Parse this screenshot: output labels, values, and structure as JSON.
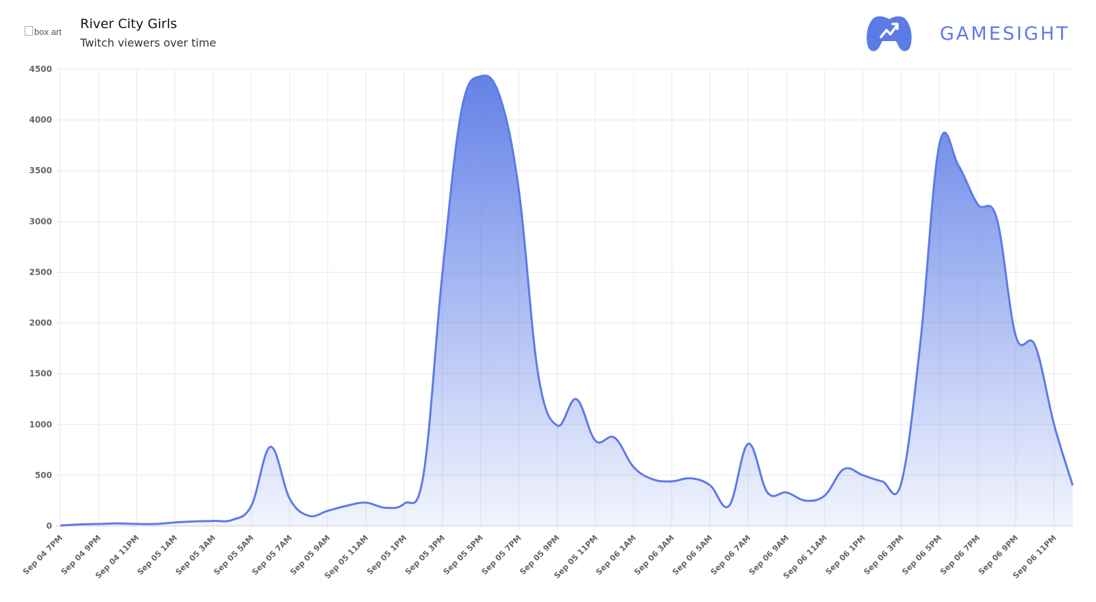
{
  "header": {
    "boxart_alt": "box art",
    "title": "River City Girls",
    "subtitle": "Twitch viewers over time"
  },
  "brand": {
    "name": "GAMESIGHT",
    "color": "#5b7be6",
    "icon": "gamepad-trend-icon"
  },
  "chart_data": {
    "type": "area",
    "title": "River City Girls",
    "subtitle": "Twitch viewers over time",
    "xlabel": "",
    "ylabel": "",
    "ylim": [
      0,
      4500
    ],
    "yticks": [
      0,
      500,
      1000,
      1500,
      2000,
      2500,
      3000,
      3500,
      4000,
      4500
    ],
    "grid": true,
    "legend": "none",
    "line_color": "#5b7be6",
    "xtick_labels": [
      "Sep 04 7PM",
      "Sep 04 9PM",
      "Sep 04 11PM",
      "Sep 05 1AM",
      "Sep 05 3AM",
      "Sep 05 5AM",
      "Sep 05 7AM",
      "Sep 05 9AM",
      "Sep 05 11AM",
      "Sep 05 1PM",
      "Sep 05 3PM",
      "Sep 05 5PM",
      "Sep 05 7PM",
      "Sep 05 9PM",
      "Sep 05 11PM",
      "Sep 06 1AM",
      "Sep 06 3AM",
      "Sep 06 5AM",
      "Sep 06 7AM",
      "Sep 06 9AM",
      "Sep 06 11AM",
      "Sep 06 1PM",
      "Sep 06 3PM",
      "Sep 06 5PM",
      "Sep 06 7PM",
      "Sep 06 9PM",
      "Sep 06 11PM"
    ],
    "x": [
      "Sep 04 7PM",
      "Sep 04 8PM",
      "Sep 04 9PM",
      "Sep 04 10PM",
      "Sep 04 11PM",
      "Sep 05 12AM",
      "Sep 05 1AM",
      "Sep 05 2AM",
      "Sep 05 3AM",
      "Sep 05 4AM",
      "Sep 05 5AM",
      "Sep 05 6AM",
      "Sep 05 7AM",
      "Sep 05 8AM",
      "Sep 05 9AM",
      "Sep 05 10AM",
      "Sep 05 11AM",
      "Sep 05 12PM",
      "Sep 05 1PM",
      "Sep 05 2PM",
      "Sep 05 3PM",
      "Sep 05 4PM",
      "Sep 05 5PM",
      "Sep 05 6PM",
      "Sep 05 7PM",
      "Sep 05 8PM",
      "Sep 05 9PM",
      "Sep 05 10PM",
      "Sep 05 11PM",
      "Sep 06 12AM",
      "Sep 06 1AM",
      "Sep 06 2AM",
      "Sep 06 3AM",
      "Sep 06 4AM",
      "Sep 06 5AM",
      "Sep 06 6AM",
      "Sep 06 7AM",
      "Sep 06 8AM",
      "Sep 06 9AM",
      "Sep 06 10AM",
      "Sep 06 11AM",
      "Sep 06 12PM",
      "Sep 06 1PM",
      "Sep 06 2PM",
      "Sep 06 3PM",
      "Sep 06 4PM",
      "Sep 06 5PM",
      "Sep 06 6PM",
      "Sep 06 7PM",
      "Sep 06 8PM",
      "Sep 06 9PM",
      "Sep 06 10PM",
      "Sep 06 11PM",
      "Sep 07 12AM"
    ],
    "series": [
      {
        "values": [
          5,
          15,
          20,
          25,
          20,
          20,
          35,
          45,
          50,
          60,
          200,
          780,
          270,
          100,
          150,
          200,
          230,
          180,
          220,
          500,
          2500,
          4100,
          4430,
          4230,
          3300,
          1500,
          990,
          1250,
          840,
          870,
          580,
          460,
          440,
          470,
          400,
          200,
          810,
          330,
          330,
          250,
          300,
          560,
          500,
          440,
          420,
          1800,
          3760,
          3550,
          3170,
          3030,
          1870,
          1780,
          1000,
          400
        ]
      }
    ]
  }
}
